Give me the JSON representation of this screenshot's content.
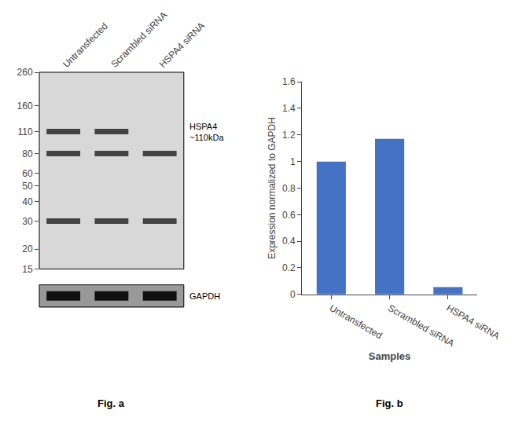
{
  "chart_data": [
    {
      "type": "blot",
      "categories": [
        "Untransfected",
        "Scrambled siRNA",
        "HSPA4 siRNA"
      ],
      "ylim": [
        15,
        260
      ],
      "yticks": [
        260,
        160,
        110,
        80,
        60,
        50,
        40,
        30,
        20,
        15
      ],
      "log": "y",
      "grid": false,
      "bands": [
        {
          "y": 110,
          "lanes": [
            "Untransfected",
            "Scrambled siRNA"
          ]
        },
        {
          "y": 80,
          "lanes": [
            "Untransfected",
            "Scrambled siRNA",
            "HSPA4 siRNA"
          ]
        },
        {
          "y": 30,
          "lanes": [
            "Untransfected",
            "Scrambled siRNA",
            "HSPA4 siRNA"
          ]
        }
      ],
      "annotations": [
        {
          "text": "HSPA4\n~110kDa",
          "y": 110
        }
      ],
      "loading_control": "GAPDH",
      "caption": "Fig. a"
    },
    {
      "type": "bar",
      "categories": [
        "Untransfected",
        "Scrambled siRNA",
        "HSPA4 siRNA"
      ],
      "values": [
        1.0,
        1.17,
        0.055
      ],
      "color": "#4472C4",
      "ylim": [
        0,
        1.6
      ],
      "yticks": [
        0,
        0.2,
        0.4,
        0.6,
        0.8,
        1.0,
        1.2,
        1.4,
        1.6
      ],
      "xlabel": "Samples",
      "ylabel": "Expression normalized to GAPDH",
      "grid": false,
      "caption": "Fig. b"
    }
  ]
}
